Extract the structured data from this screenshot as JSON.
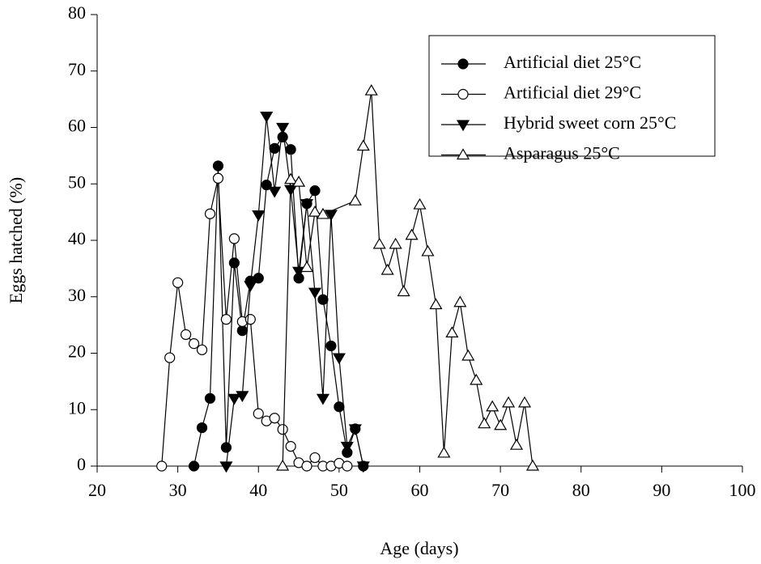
{
  "chart_data": {
    "type": "line",
    "xlabel": "Age (days)",
    "ylabel": "Eggs hatched (%)",
    "xlim": [
      20,
      100
    ],
    "xticks": [
      20,
      30,
      40,
      50,
      60,
      70,
      80,
      90,
      100
    ],
    "ylim": [
      0,
      80
    ],
    "yticks": [
      0,
      10,
      20,
      30,
      40,
      50,
      60,
      70,
      80
    ],
    "legend": "upper right",
    "series": [
      {
        "name": "Artificial diet 25°C",
        "color": "#000000",
        "marker": "circle",
        "marker_fill": "#000000",
        "x": [
          32,
          33,
          34,
          35,
          36,
          37,
          38,
          39,
          40,
          41,
          42,
          43,
          44,
          45,
          46,
          47,
          48,
          49,
          50,
          51,
          52,
          53
        ],
        "values": [
          0,
          6.8,
          12,
          53.2,
          3.3,
          36,
          24,
          32.8,
          33.3,
          49.8,
          56.3,
          58.3,
          56.1,
          33.3,
          46.5,
          48.8,
          29.5,
          21.3,
          10.5,
          2.4,
          6.6,
          0
        ]
      },
      {
        "name": "Artificial diet 29°C",
        "color": "#000000",
        "marker": "circle",
        "marker_fill": "#ffffff",
        "x": [
          28,
          29,
          30,
          31,
          32,
          33,
          34,
          35,
          36,
          37,
          38,
          39,
          40,
          41,
          42,
          43,
          44,
          45,
          46,
          47,
          48,
          49,
          50,
          51
        ],
        "values": [
          0,
          19.2,
          32.5,
          23.3,
          21.7,
          20.6,
          44.7,
          51,
          26,
          40.3,
          25.6,
          26,
          9.3,
          8,
          8.5,
          6.5,
          3.5,
          0.6,
          0,
          1.5,
          0,
          0,
          0.5,
          0
        ]
      },
      {
        "name": "Hybrid sweet corn 25°C",
        "color": "#000000",
        "marker": "triangle-down",
        "marker_fill": "#000000",
        "x": [
          36,
          37,
          38,
          39,
          40,
          41,
          42,
          43,
          44,
          45,
          46,
          47,
          48,
          49,
          50,
          51,
          52,
          53
        ],
        "values": [
          0,
          12,
          12.5,
          32,
          44.5,
          62,
          48.7,
          60,
          49,
          34.5,
          46.5,
          30.8,
          12,
          44.6,
          19.2,
          3.5,
          6.6,
          0
        ]
      },
      {
        "name": "Asparagus 25°C",
        "color": "#000000",
        "marker": "triangle-up",
        "marker_fill": "#ffffff",
        "x": [
          43,
          44,
          45,
          46,
          47,
          48,
          52,
          53,
          54,
          55,
          56,
          57,
          58,
          59,
          60,
          61,
          62,
          63,
          64,
          65,
          66,
          67,
          68,
          69,
          70,
          71,
          72,
          73,
          74
        ],
        "values": [
          0,
          50.8,
          50.3,
          35.2,
          45,
          44.6,
          47,
          56.7,
          66.5,
          39.3,
          34.7,
          39.3,
          30.9,
          40.9,
          46.3,
          38,
          28.6,
          2.3,
          23.6,
          29,
          19.5,
          15.2,
          7.5,
          10.5,
          7.2,
          11.2,
          3.7,
          11.2,
          0
        ]
      }
    ]
  }
}
